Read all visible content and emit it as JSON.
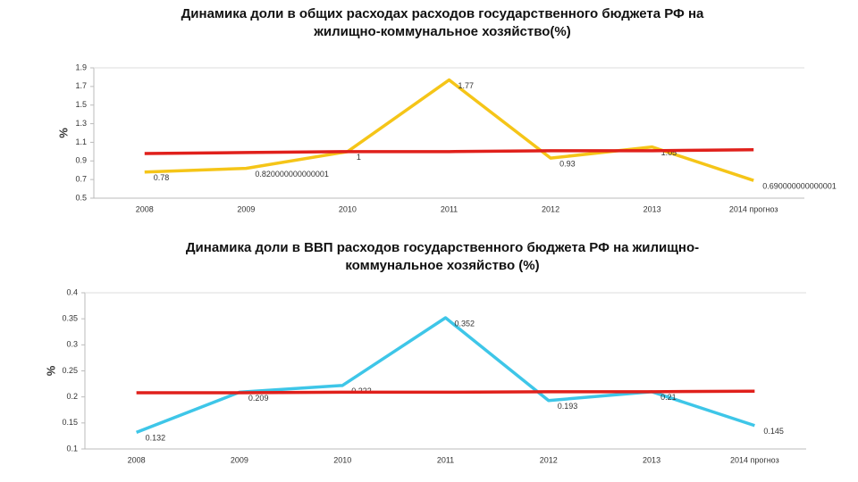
{
  "chart_data": [
    {
      "type": "line",
      "title": "Динамика доли в общих расходах расходов государственного бюджета РФ на жилищно-коммунальное хозяйство(%)",
      "y_label": "%",
      "categories": [
        "2008",
        "2009",
        "2010",
        "2011",
        "2012",
        "2013",
        "2014 прогноз"
      ],
      "ylim": [
        0.5,
        1.9
      ],
      "yticks": [
        0.5,
        0.7,
        0.9,
        1.1,
        1.3,
        1.5,
        1.7,
        1.9
      ],
      "series": [
        {
          "color": "#f5c518",
          "values": [
            0.78,
            0.820000000000001,
            1,
            1.77,
            0.93,
            1.05,
            0.690000000000001
          ],
          "labels": true
        },
        {
          "color": "#e0201b",
          "values": [
            0.98,
            0.99,
            1.0,
            1.0,
            1.01,
            1.01,
            1.02
          ],
          "labels": false
        }
      ]
    },
    {
      "type": "line",
      "title": "Динамика доли в ВВП расходов государственного бюджета РФ на жилищно-коммунальное хозяйство (%)",
      "y_label": "%",
      "categories": [
        "2008",
        "2009",
        "2010",
        "2011",
        "2012",
        "2013",
        "2014 прогноз"
      ],
      "ylim": [
        0.1,
        0.4
      ],
      "yticks": [
        0.1,
        0.15,
        0.2,
        0.25,
        0.3,
        0.35,
        0.4
      ],
      "series": [
        {
          "color": "#3ec6e8",
          "values": [
            0.132,
            0.209,
            0.222,
            0.352,
            0.193,
            0.21,
            0.145
          ],
          "labels": true
        },
        {
          "color": "#e0201b",
          "values": [
            0.208,
            0.208,
            0.209,
            0.209,
            0.21,
            0.21,
            0.211
          ],
          "labels": false
        }
      ]
    }
  ]
}
